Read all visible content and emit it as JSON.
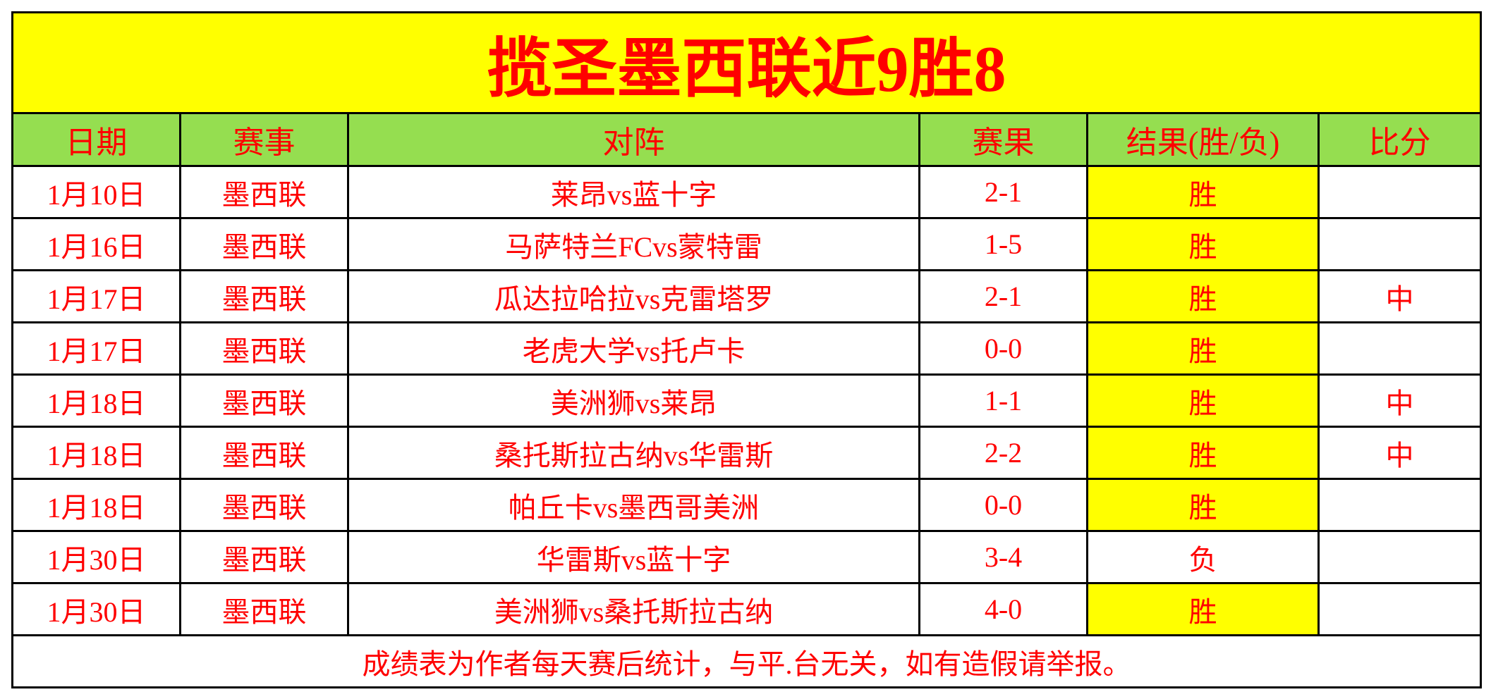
{
  "title": "揽圣墨西联近9胜8",
  "headers": [
    "日期",
    "赛事",
    "对阵",
    "赛果",
    "结果(胜/负)",
    "比分"
  ],
  "rows": [
    {
      "date": "1月10日",
      "league": "墨西联",
      "match": "莱昂vs蓝十字",
      "score": "2-1",
      "result": "胜",
      "exact": ""
    },
    {
      "date": "1月16日",
      "league": "墨西联",
      "match": "马萨特兰FCvs蒙特雷",
      "score": "1-5",
      "result": "胜",
      "exact": ""
    },
    {
      "date": "1月17日",
      "league": "墨西联",
      "match": "瓜达拉哈拉vs克雷塔罗",
      "score": "2-1",
      "result": "胜",
      "exact": "中"
    },
    {
      "date": "1月17日",
      "league": "墨西联",
      "match": "老虎大学vs托卢卡",
      "score": "0-0",
      "result": "胜",
      "exact": ""
    },
    {
      "date": "1月18日",
      "league": "墨西联",
      "match": "美洲狮vs莱昂",
      "score": "1-1",
      "result": "胜",
      "exact": "中"
    },
    {
      "date": "1月18日",
      "league": "墨西联",
      "match": "桑托斯拉古纳vs华雷斯",
      "score": "2-2",
      "result": "胜",
      "exact": "中"
    },
    {
      "date": "1月18日",
      "league": "墨西联",
      "match": "帕丘卡vs墨西哥美洲",
      "score": "0-0",
      "result": "胜",
      "exact": ""
    },
    {
      "date": "1月30日",
      "league": "墨西联",
      "match": "华雷斯vs蓝十字",
      "score": "3-4",
      "result": "负",
      "exact": ""
    },
    {
      "date": "1月30日",
      "league": "墨西联",
      "match": "美洲狮vs桑托斯拉古纳",
      "score": "4-0",
      "result": "胜",
      "exact": ""
    }
  ],
  "footer": "成绩表为作者每天赛后统计，与平.台无关，如有造假请举报。",
  "colors": {
    "title_bg": "#ffff00",
    "header_bg": "#95de50",
    "text": "#ff0000",
    "win_bg": "#ffff00",
    "loss_text": "#000000"
  }
}
